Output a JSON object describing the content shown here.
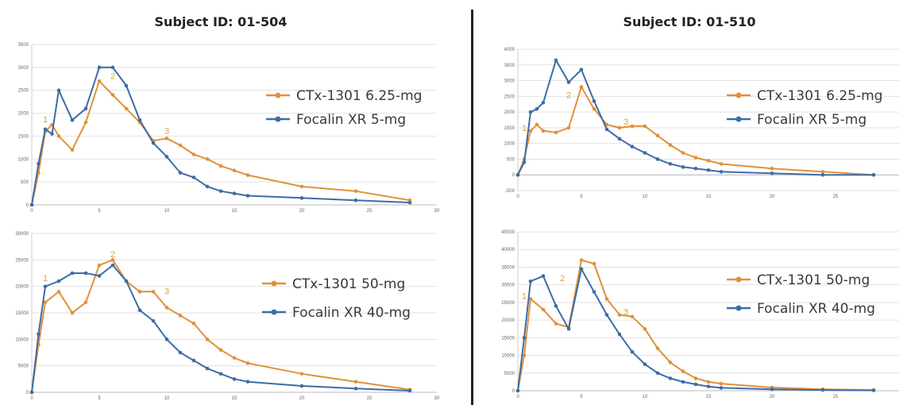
{
  "titles": {
    "left": "Subject ID: 01-504",
    "right": "Subject ID: 01-510"
  },
  "colors": {
    "ctx": "#e0913a",
    "focalin": "#3d6ca8"
  },
  "chart_data": [
    {
      "type": "line",
      "subject": "01-504",
      "xlim": [
        0,
        30
      ],
      "xticks": [
        0,
        5,
        10,
        15,
        20,
        25,
        30
      ],
      "ylim": [
        0,
        3500
      ],
      "yticks": [
        0,
        500,
        1000,
        1500,
        2000,
        2500,
        3000,
        3500
      ],
      "series": [
        {
          "name": "CTx-1301 6.25-mg",
          "color": "#e0913a",
          "x": [
            0,
            0.5,
            1,
            1.5,
            2,
            3,
            4,
            5,
            6,
            7,
            8,
            9,
            10,
            11,
            12,
            13,
            14,
            15,
            16,
            20,
            24,
            28
          ],
          "y": [
            0,
            700,
            1600,
            1750,
            1500,
            1200,
            1800,
            2700,
            2400,
            2100,
            1800,
            1400,
            1450,
            1300,
            1100,
            1000,
            850,
            750,
            650,
            400,
            300,
            100
          ]
        },
        {
          "name": "Focalin XR 5-mg",
          "color": "#3d6ca8",
          "x": [
            0,
            0.5,
            1,
            1.5,
            2,
            3,
            4,
            5,
            6,
            7,
            8,
            9,
            10,
            11,
            12,
            13,
            14,
            15,
            16,
            20,
            24,
            28
          ],
          "y": [
            0,
            900,
            1650,
            1550,
            2500,
            1850,
            2100,
            3000,
            3000,
            2600,
            1850,
            1350,
            1050,
            700,
            600,
            400,
            300,
            250,
            200,
            150,
            100,
            50
          ]
        }
      ],
      "annotations": [
        {
          "text": "1",
          "x": 1,
          "y": 1800
        },
        {
          "text": "2",
          "x": 6,
          "y": 2750
        },
        {
          "text": "3",
          "x": 10,
          "y": 1550
        }
      ]
    },
    {
      "type": "line",
      "subject": "01-510",
      "xlim": [
        0,
        30
      ],
      "xticks": [
        0,
        5,
        10,
        15,
        20,
        25
      ],
      "ylim": [
        -500,
        4000
      ],
      "yticks": [
        -500,
        0,
        500,
        1000,
        1500,
        2000,
        2500,
        3000,
        3500,
        4000
      ],
      "series": [
        {
          "name": "CTx-1301 6.25-mg",
          "color": "#e0913a",
          "x": [
            0,
            0.5,
            1,
            1.5,
            2,
            3,
            4,
            5,
            6,
            7,
            8,
            9,
            10,
            11,
            12,
            13,
            14,
            15,
            16,
            20,
            24,
            28
          ],
          "y": [
            0,
            500,
            1400,
            1600,
            1400,
            1350,
            1500,
            2800,
            2100,
            1600,
            1500,
            1550,
            1550,
            1250,
            950,
            700,
            550,
            450,
            350,
            200,
            100,
            0
          ]
        },
        {
          "name": "Focalin XR 5-mg",
          "color": "#3d6ca8",
          "x": [
            0,
            0.5,
            1,
            1.5,
            2,
            3,
            4,
            5,
            6,
            7,
            8,
            9,
            10,
            11,
            12,
            13,
            14,
            15,
            16,
            20,
            24,
            28
          ],
          "y": [
            0,
            400,
            2000,
            2100,
            2300,
            3650,
            2950,
            3350,
            2350,
            1450,
            1150,
            900,
            700,
            500,
            350,
            250,
            200,
            150,
            100,
            50,
            0,
            0
          ]
        }
      ],
      "annotations": [
        {
          "text": "1",
          "x": 0.5,
          "y": 1400
        },
        {
          "text": "2",
          "x": 4,
          "y": 2450
        },
        {
          "text": "3",
          "x": 8.5,
          "y": 1600
        }
      ]
    },
    {
      "type": "line",
      "subject": "01-504",
      "xlim": [
        0,
        30
      ],
      "xticks": [
        0,
        5,
        10,
        15,
        20,
        25,
        30
      ],
      "ylim": [
        0,
        30000
      ],
      "yticks": [
        0,
        5000,
        10000,
        15000,
        20000,
        25000,
        30000
      ],
      "series": [
        {
          "name": "CTx-1301 50-mg",
          "color": "#e0913a",
          "x": [
            0,
            0.5,
            1,
            2,
            3,
            4,
            5,
            6,
            7,
            8,
            9,
            10,
            11,
            12,
            13,
            14,
            15,
            16,
            20,
            24,
            28
          ],
          "y": [
            0,
            9000,
            17000,
            19000,
            15000,
            17000,
            24000,
            25000,
            21000,
            19000,
            19000,
            16000,
            14500,
            13000,
            10000,
            8000,
            6500,
            5500,
            3500,
            2000,
            500
          ]
        },
        {
          "name": "Focalin XR 40-mg",
          "color": "#3d6ca8",
          "x": [
            0,
            0.5,
            1,
            2,
            3,
            4,
            5,
            6,
            7,
            8,
            9,
            10,
            11,
            12,
            13,
            14,
            15,
            16,
            20,
            24,
            28
          ],
          "y": [
            0,
            11000,
            20000,
            21000,
            22500,
            22500,
            22000,
            24000,
            21000,
            15500,
            13500,
            10000,
            7500,
            6000,
            4500,
            3500,
            2500,
            2000,
            1200,
            700,
            300
          ]
        }
      ],
      "annotations": [
        {
          "text": "1",
          "x": 1,
          "y": 21000
        },
        {
          "text": "2",
          "x": 6,
          "y": 25500
        },
        {
          "text": "3",
          "x": 10,
          "y": 18500
        }
      ]
    },
    {
      "type": "line",
      "subject": "01-510",
      "xlim": [
        0,
        30
      ],
      "xticks": [
        0,
        5,
        10,
        15,
        20,
        25
      ],
      "ylim": [
        0,
        45000
      ],
      "yticks": [
        0,
        5000,
        10000,
        15000,
        20000,
        25000,
        30000,
        35000,
        40000,
        45000
      ],
      "series": [
        {
          "name": "CTx-1301 50-mg",
          "color": "#e0913a",
          "x": [
            0,
            0.5,
            1,
            2,
            3,
            4,
            5,
            6,
            7,
            8,
            9,
            10,
            11,
            12,
            13,
            14,
            15,
            16,
            20,
            24,
            28
          ],
          "y": [
            0,
            10000,
            26000,
            23000,
            19000,
            18000,
            37000,
            36000,
            26000,
            21500,
            21000,
            17500,
            12000,
            8000,
            5500,
            3500,
            2500,
            2000,
            900,
            400,
            200
          ]
        },
        {
          "name": "Focalin XR 40-mg",
          "color": "#3d6ca8",
          "x": [
            0,
            0.5,
            1,
            2,
            3,
            4,
            5,
            6,
            7,
            8,
            9,
            10,
            11,
            12,
            13,
            14,
            15,
            16,
            20,
            24,
            28
          ],
          "y": [
            0,
            15000,
            31000,
            32500,
            24000,
            17500,
            34500,
            28000,
            21500,
            16000,
            11000,
            7500,
            5000,
            3500,
            2500,
            1800,
            1200,
            800,
            400,
            200,
            100
          ]
        }
      ],
      "annotations": [
        {
          "text": "1",
          "x": 0.5,
          "y": 26000
        },
        {
          "text": "2",
          "x": 3.5,
          "y": 31000
        },
        {
          "text": "3",
          "x": 8.5,
          "y": 21500
        }
      ]
    }
  ]
}
